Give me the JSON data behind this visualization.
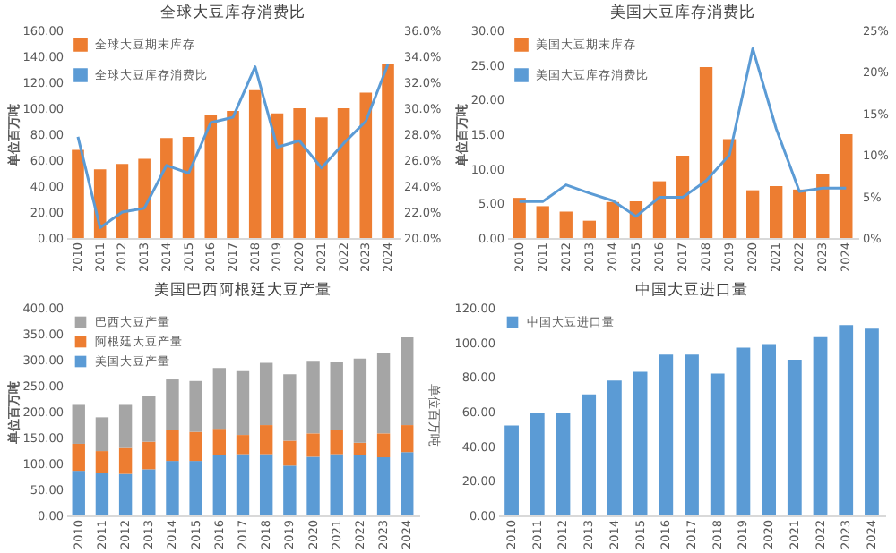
{
  "chart_data": [
    {
      "type": "bar",
      "title": "全球大豆库存消费比",
      "ylabel": "单位百万吨",
      "legend": "top left",
      "categories": [
        "2010",
        "2011",
        "2012",
        "2013",
        "2014",
        "2015",
        "2016",
        "2017",
        "2018",
        "2019",
        "2020",
        "2021",
        "2022",
        "2023",
        "2024"
      ],
      "series": [
        {
          "name": "全球大豆期末库存",
          "color": "#ed7d31",
          "values": [
            68,
            53,
            57,
            61,
            77,
            78,
            95,
            98,
            114,
            96,
            100,
            93,
            100,
            112,
            134
          ]
        },
        {
          "name": "全球大豆库存消费比",
          "type": "line",
          "axis": "y2",
          "color": "#5b9bd5",
          "values": [
            27.8,
            20.8,
            22.0,
            22.3,
            25.6,
            25.0,
            28.9,
            29.3,
            33.2,
            27.0,
            27.5,
            25.4,
            27.3,
            29.0,
            33.4
          ]
        }
      ],
      "ylim": [
        0,
        160
      ],
      "yticks": [
        {
          "value": 0,
          "label": "0.00"
        },
        {
          "value": 20,
          "label": "20.00"
        },
        {
          "value": 40,
          "label": "40.00"
        },
        {
          "value": 60,
          "label": "60.00"
        },
        {
          "value": 80,
          "label": "80.00"
        },
        {
          "value": 100,
          "label": "100.00"
        },
        {
          "value": 120,
          "label": "120.00"
        },
        {
          "value": 140,
          "label": "140.00"
        },
        {
          "value": 160,
          "label": "160.00"
        }
      ],
      "y2lim": [
        20,
        36
      ],
      "y2ticks": [
        {
          "value": 20,
          "label": "20.0%"
        },
        {
          "value": 22,
          "label": "22.0%"
        },
        {
          "value": 24,
          "label": "24.0%"
        },
        {
          "value": 26,
          "label": "26.0%"
        },
        {
          "value": 28,
          "label": "28.0%"
        },
        {
          "value": 30,
          "label": "30.0%"
        },
        {
          "value": 32,
          "label": "32.0%"
        },
        {
          "value": 34,
          "label": "34.0%"
        },
        {
          "value": 36,
          "label": "36.0%"
        }
      ]
    },
    {
      "type": "bar",
      "title": "美国大豆库存消费比",
      "ylabel": "单位百万吨",
      "legend": "top left",
      "categories": [
        "2010",
        "2011",
        "2012",
        "2013",
        "2014",
        "2015",
        "2016",
        "2017",
        "2018",
        "2019",
        "2020",
        "2021",
        "2022",
        "2023",
        "2024"
      ],
      "series": [
        {
          "name": "美国大豆期末库存",
          "color": "#ed7d31",
          "values": [
            5.8,
            4.6,
            3.8,
            2.5,
            5.2,
            5.3,
            8.2,
            11.9,
            24.7,
            14.3,
            6.9,
            7.5,
            7.0,
            9.2,
            15.0
          ]
        },
        {
          "name": "美国大豆库存消费比",
          "type": "line",
          "axis": "y2",
          "color": "#5b9bd5",
          "values": [
            4.4,
            4.4,
            6.4,
            5.4,
            4.5,
            2.6,
            4.9,
            4.9,
            6.9,
            10.0,
            22.8,
            13.2,
            5.6,
            6.0,
            6.0
          ]
        }
      ],
      "ylim": [
        0,
        30
      ],
      "yticks": [
        {
          "value": 0,
          "label": "0.00"
        },
        {
          "value": 5,
          "label": "5.00"
        },
        {
          "value": 10,
          "label": "10.00"
        },
        {
          "value": 15,
          "label": "15.00"
        },
        {
          "value": 20,
          "label": "20.00"
        },
        {
          "value": 25,
          "label": "25.00"
        },
        {
          "value": 30,
          "label": "30.00"
        }
      ],
      "y2lim": [
        0,
        25
      ],
      "y2ticks": [
        {
          "value": 0,
          "label": "0%"
        },
        {
          "value": 5,
          "label": "5%"
        },
        {
          "value": 10,
          "label": "10%"
        },
        {
          "value": 15,
          "label": "15%"
        },
        {
          "value": 20,
          "label": "20%"
        },
        {
          "value": 25,
          "label": "25%"
        }
      ]
    },
    {
      "type": "bar",
      "title": "美国巴西阿根廷大豆产量",
      "ylabel": "单位百万吨",
      "y2label": "单位百万吨",
      "legend": "top left",
      "stacked": true,
      "categories": [
        "2010",
        "2011",
        "2012",
        "2013",
        "2014",
        "2015",
        "2016",
        "2017",
        "2018",
        "2019",
        "2020",
        "2021",
        "2022",
        "2023",
        "2024"
      ],
      "series": [
        {
          "name": "美国大豆产量",
          "color": "#5b9bd5",
          "values": [
            86,
            81,
            80,
            89,
            105,
            105,
            116,
            118,
            118,
            96,
            113,
            118,
            116,
            112,
            122
          ]
        },
        {
          "name": "阿根廷大豆产量",
          "color": "#ed7d31",
          "values": [
            52,
            43,
            50,
            53,
            60,
            56,
            51,
            37,
            56,
            48,
            45,
            47,
            24,
            46,
            52
          ]
        },
        {
          "name": "巴西大豆产量",
          "color": "#a5a5a5",
          "values": [
            75,
            65,
            83,
            88,
            97,
            98,
            117,
            123,
            120,
            128,
            140,
            130,
            162,
            154,
            169
          ]
        }
      ],
      "ylim": [
        0,
        400
      ],
      "yticks": [
        {
          "value": 0,
          "label": "0.00"
        },
        {
          "value": 50,
          "label": "50.00"
        },
        {
          "value": 100,
          "label": "100.00"
        },
        {
          "value": 150,
          "label": "150.00"
        },
        {
          "value": 200,
          "label": "200.00"
        },
        {
          "value": 250,
          "label": "250.00"
        },
        {
          "value": 300,
          "label": "300.00"
        },
        {
          "value": 350,
          "label": "350.00"
        },
        {
          "value": 400,
          "label": "400.00"
        }
      ]
    },
    {
      "type": "bar",
      "title": "中国大豆进口量",
      "legend": "top left",
      "categories": [
        "2010",
        "2011",
        "2012",
        "2013",
        "2014",
        "2015",
        "2016",
        "2017",
        "2018",
        "2019",
        "2020",
        "2021",
        "2022",
        "2023",
        "2024"
      ],
      "series": [
        {
          "name": "中国大豆进口量",
          "color": "#5b9bd5",
          "values": [
            52,
            59,
            59,
            70,
            78,
            83,
            93,
            93,
            82,
            97,
            99,
            90,
            103,
            110,
            108
          ]
        }
      ],
      "ylim": [
        0,
        120
      ],
      "yticks": [
        {
          "value": 0,
          "label": "0.00"
        },
        {
          "value": 20,
          "label": "20.00"
        },
        {
          "value": 40,
          "label": "40.00"
        },
        {
          "value": 60,
          "label": "60.00"
        },
        {
          "value": 80,
          "label": "80.00"
        },
        {
          "value": 100,
          "label": "100.00"
        },
        {
          "value": 120,
          "label": "120.00"
        }
      ]
    }
  ]
}
